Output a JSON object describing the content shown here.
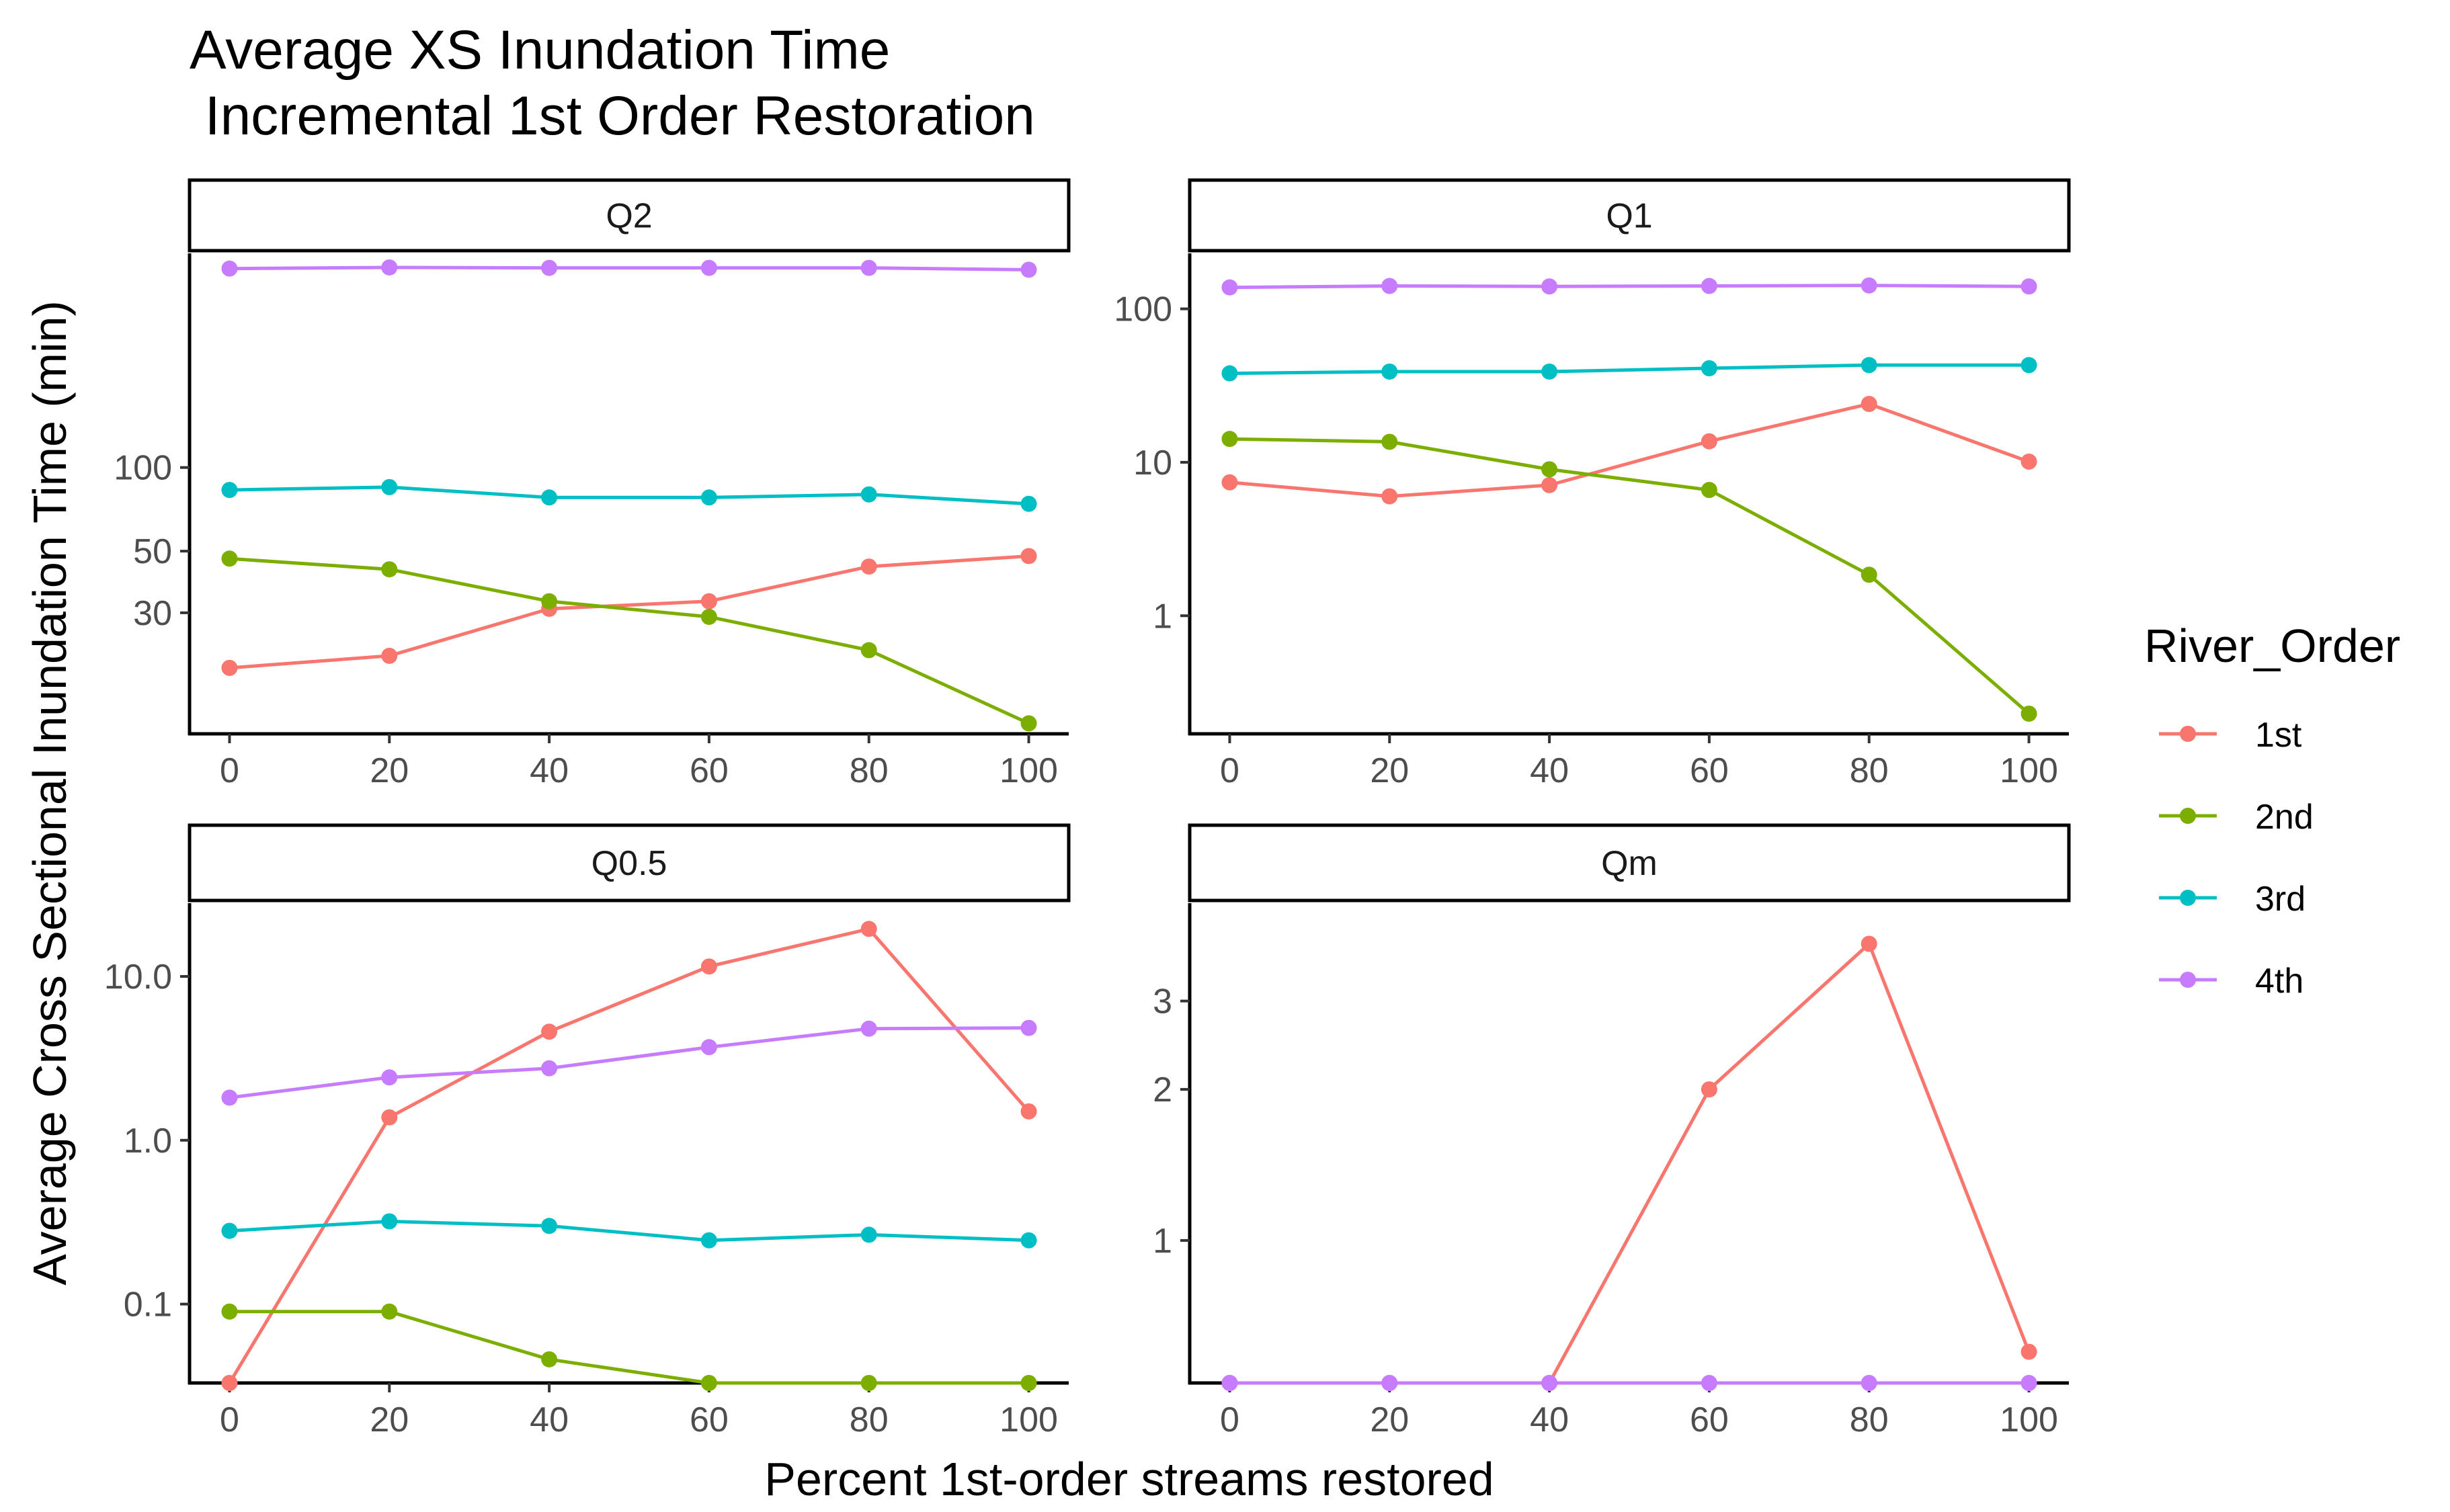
{
  "title_line1": "Average XS Inundation Time",
  "title_line2": " Incremental 1st Order Restoration",
  "chart_data": {
    "type": "line",
    "title": "Average XS Inundation Time\n Incremental 1st Order Restoration",
    "xlabel": "Percent 1st-order streams restored",
    "ylabel": "Average Cross Sectional Inundation Time (min)",
    "x": [
      0,
      20,
      40,
      60,
      80,
      100
    ],
    "x_ticks": [
      "0",
      "20",
      "40",
      "60",
      "80",
      "100"
    ],
    "legend": {
      "title": "River_Order",
      "position": "right"
    },
    "series_colors": {
      "1st": "#F8766D",
      "2nd": "#7CAE00",
      "3rd": "#00BFC4",
      "4th": "#C77CFF"
    },
    "grid": false,
    "facets": [
      {
        "label": "Q2",
        "y_scale": "log",
        "ylim": [
          11,
          590
        ],
        "y_ticks": [
          {
            "value": 30,
            "label": "30"
          },
          {
            "value": 50,
            "label": "50"
          },
          {
            "value": 100,
            "label": "100"
          }
        ],
        "series": [
          {
            "name": "1st",
            "values": [
              19,
              21,
              31,
              33,
              44,
              48
            ]
          },
          {
            "name": "2nd",
            "values": [
              47,
              43,
              33,
              29,
              22,
              12
            ]
          },
          {
            "name": "3rd",
            "values": [
              83,
              85,
              78,
              78,
              80,
              74
            ]
          },
          {
            "name": "4th",
            "values": [
              520,
              525,
              523,
              523,
              523,
              515
            ]
          }
        ]
      },
      {
        "label": "Q1",
        "y_scale": "log",
        "ylim": [
          0.17,
          230
        ],
        "y_ticks": [
          {
            "value": 1,
            "label": "1"
          },
          {
            "value": 10,
            "label": "10"
          },
          {
            "value": 100,
            "label": "100"
          }
        ],
        "series": [
          {
            "name": "1st",
            "values": [
              7.4,
              6.0,
              7.1,
              13.7,
              24,
              10.1
            ]
          },
          {
            "name": "2nd",
            "values": [
              14.2,
              13.6,
              9.0,
              6.6,
              1.85,
              0.23
            ]
          },
          {
            "name": "3rd",
            "values": [
              38,
              39,
              39,
              41,
              43,
              43
            ]
          },
          {
            "name": "4th",
            "values": [
              138,
              141,
              140,
              141,
              142,
              140
            ]
          }
        ]
      },
      {
        "label": "Q0.5",
        "y_scale": "log",
        "ylim": [
          0.033,
          28
        ],
        "y_ticks": [
          {
            "value": 0.1,
            "label": "0.1"
          },
          {
            "value": 1,
            "label": "1.0"
          },
          {
            "value": 10,
            "label": "10.0"
          }
        ],
        "series": [
          {
            "name": "1st",
            "values": [
              0.033,
              1.38,
              4.6,
              11.5,
              19.5,
              1.5
            ]
          },
          {
            "name": "2nd",
            "values": [
              0.09,
              0.09,
              0.046,
              0.033,
              0.033,
              0.033
            ]
          },
          {
            "name": "3rd",
            "values": [
              0.28,
              0.32,
              0.3,
              0.245,
              0.265,
              0.245
            ]
          },
          {
            "name": "4th",
            "values": [
              1.82,
              2.42,
              2.75,
              3.7,
              4.8,
              4.85
            ]
          }
        ]
      },
      {
        "label": "Qm",
        "y_scale": "log",
        "ylim": [
          0.52,
          4.7
        ],
        "y_ticks": [
          {
            "value": 1,
            "label": "1"
          },
          {
            "value": 2,
            "label": "2"
          },
          {
            "value": 3,
            "label": "3"
          }
        ],
        "series": [
          {
            "name": "1st",
            "values": [
              0.52,
              0.52,
              0.52,
              2.0,
              3.9,
              0.6
            ]
          },
          {
            "name": "4th",
            "values": [
              0.52,
              0.52,
              0.52,
              0.52,
              0.52,
              0.52
            ]
          }
        ]
      }
    ]
  }
}
